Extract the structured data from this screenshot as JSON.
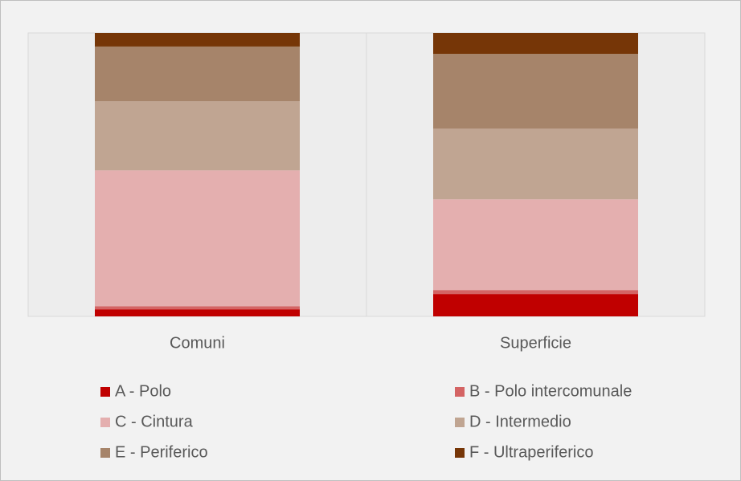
{
  "chart_data": {
    "type": "stacked_bar_100",
    "categories": [
      "Comuni",
      "Superficie"
    ],
    "ylim": [
      0,
      100
    ],
    "series": [
      {
        "name": "A - Polo",
        "color": "#c00000",
        "values": [
          2.5,
          7.9
        ]
      },
      {
        "name": "B - Polo intercomunale",
        "color": "#d46464",
        "values": [
          1.1,
          1.4
        ]
      },
      {
        "name": "C - Cintura",
        "color": "#e4afaf",
        "values": [
          47.9,
          32.0
        ]
      },
      {
        "name": "D - Intermedio",
        "color": "#c0a592",
        "values": [
          24.4,
          24.9
        ]
      },
      {
        "name": "E - Periferico",
        "color": "#a6846a",
        "values": [
          19.3,
          26.4
        ]
      },
      {
        "name": "F - Ultraperiferico",
        "color": "#763607",
        "values": [
          4.8,
          7.4
        ]
      }
    ]
  }
}
